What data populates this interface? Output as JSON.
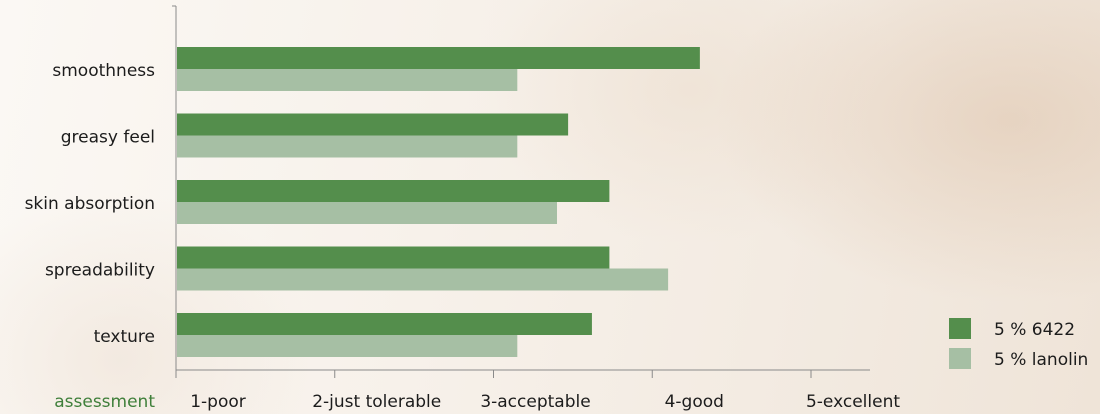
{
  "colors": {
    "series1": "#548e4c",
    "series2": "#a6bfa4",
    "axis": "#8a8a8a",
    "text": "#1c1c1c",
    "category_title": "#3f7f3a",
    "background": "#f6efe7"
  },
  "chart_data": {
    "type": "bar",
    "orientation": "horizontal",
    "category_axis_title": "assessment",
    "categories": [
      "smoothness",
      "greasy feel",
      "skin absorption",
      "spreadability",
      "texture"
    ],
    "series": [
      {
        "name": "5 % 6422",
        "values": [
          4.3,
          3.47,
          3.73,
          3.73,
          3.62
        ]
      },
      {
        "name": "5 % lanolin",
        "values": [
          3.15,
          3.15,
          3.4,
          4.1,
          3.15
        ]
      }
    ],
    "x_ticks": [
      {
        "value": 1,
        "label": "1-poor"
      },
      {
        "value": 2,
        "label": "2-just tolerable"
      },
      {
        "value": 3,
        "label": "3-acceptable"
      },
      {
        "value": 4,
        "label": "4-good"
      },
      {
        "value": 5,
        "label": "5-excellent"
      }
    ],
    "xlim": [
      1,
      5.4
    ],
    "grid": false,
    "legend_position": "bottom-right"
  }
}
